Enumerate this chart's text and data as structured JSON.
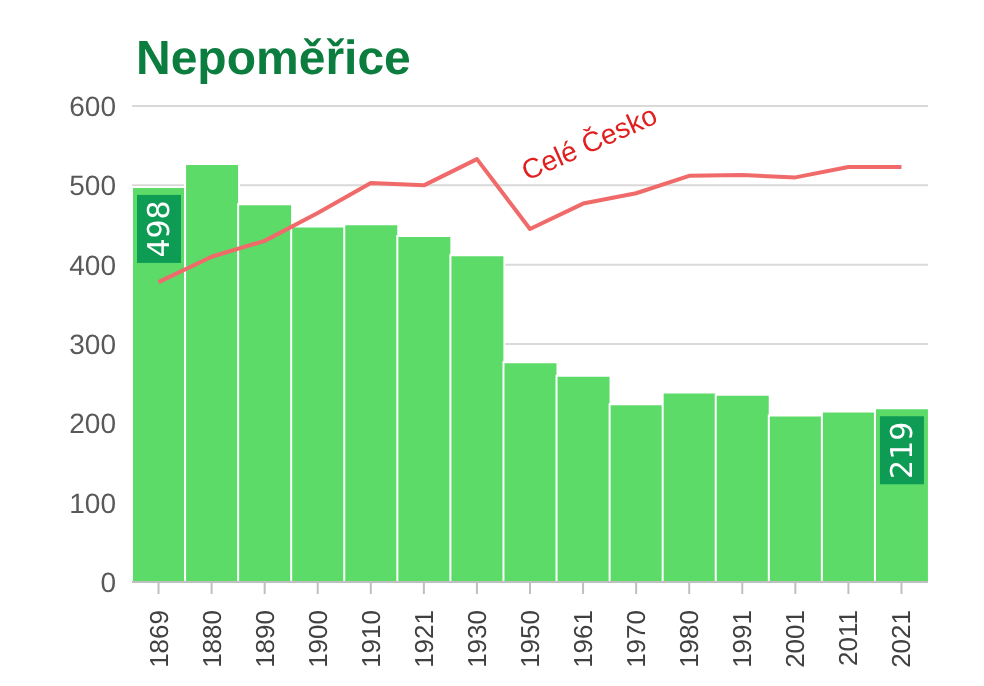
{
  "chart_data": {
    "type": "bar",
    "title": "Nepoměřice",
    "categories": [
      "1869",
      "1880",
      "1890",
      "1900",
      "1910",
      "1921",
      "1930",
      "1950",
      "1961",
      "1970",
      "1980",
      "1991",
      "2001",
      "2011",
      "2021"
    ],
    "series": [
      {
        "color": "#5cdb69",
        "values": [
          498,
          527,
          476,
          448,
          451,
          436,
          412,
          277,
          260,
          224,
          239,
          236,
          210,
          215,
          219
        ],
        "value_labels": [
          "498",
          null,
          null,
          null,
          null,
          null,
          null,
          null,
          null,
          null,
          null,
          null,
          null,
          null,
          "219"
        ]
      },
      {
        "type": "line",
        "name": "Celé Česko",
        "color": "#f06a6a",
        "values": [
          378,
          410,
          430,
          465,
          503,
          500,
          533,
          445,
          477,
          490,
          512,
          513,
          510,
          523,
          523
        ]
      }
    ],
    "ylim": [
      0,
      600
    ],
    "yticks": [
      0,
      100,
      200,
      300,
      400,
      500,
      600
    ],
    "grid": "y"
  }
}
